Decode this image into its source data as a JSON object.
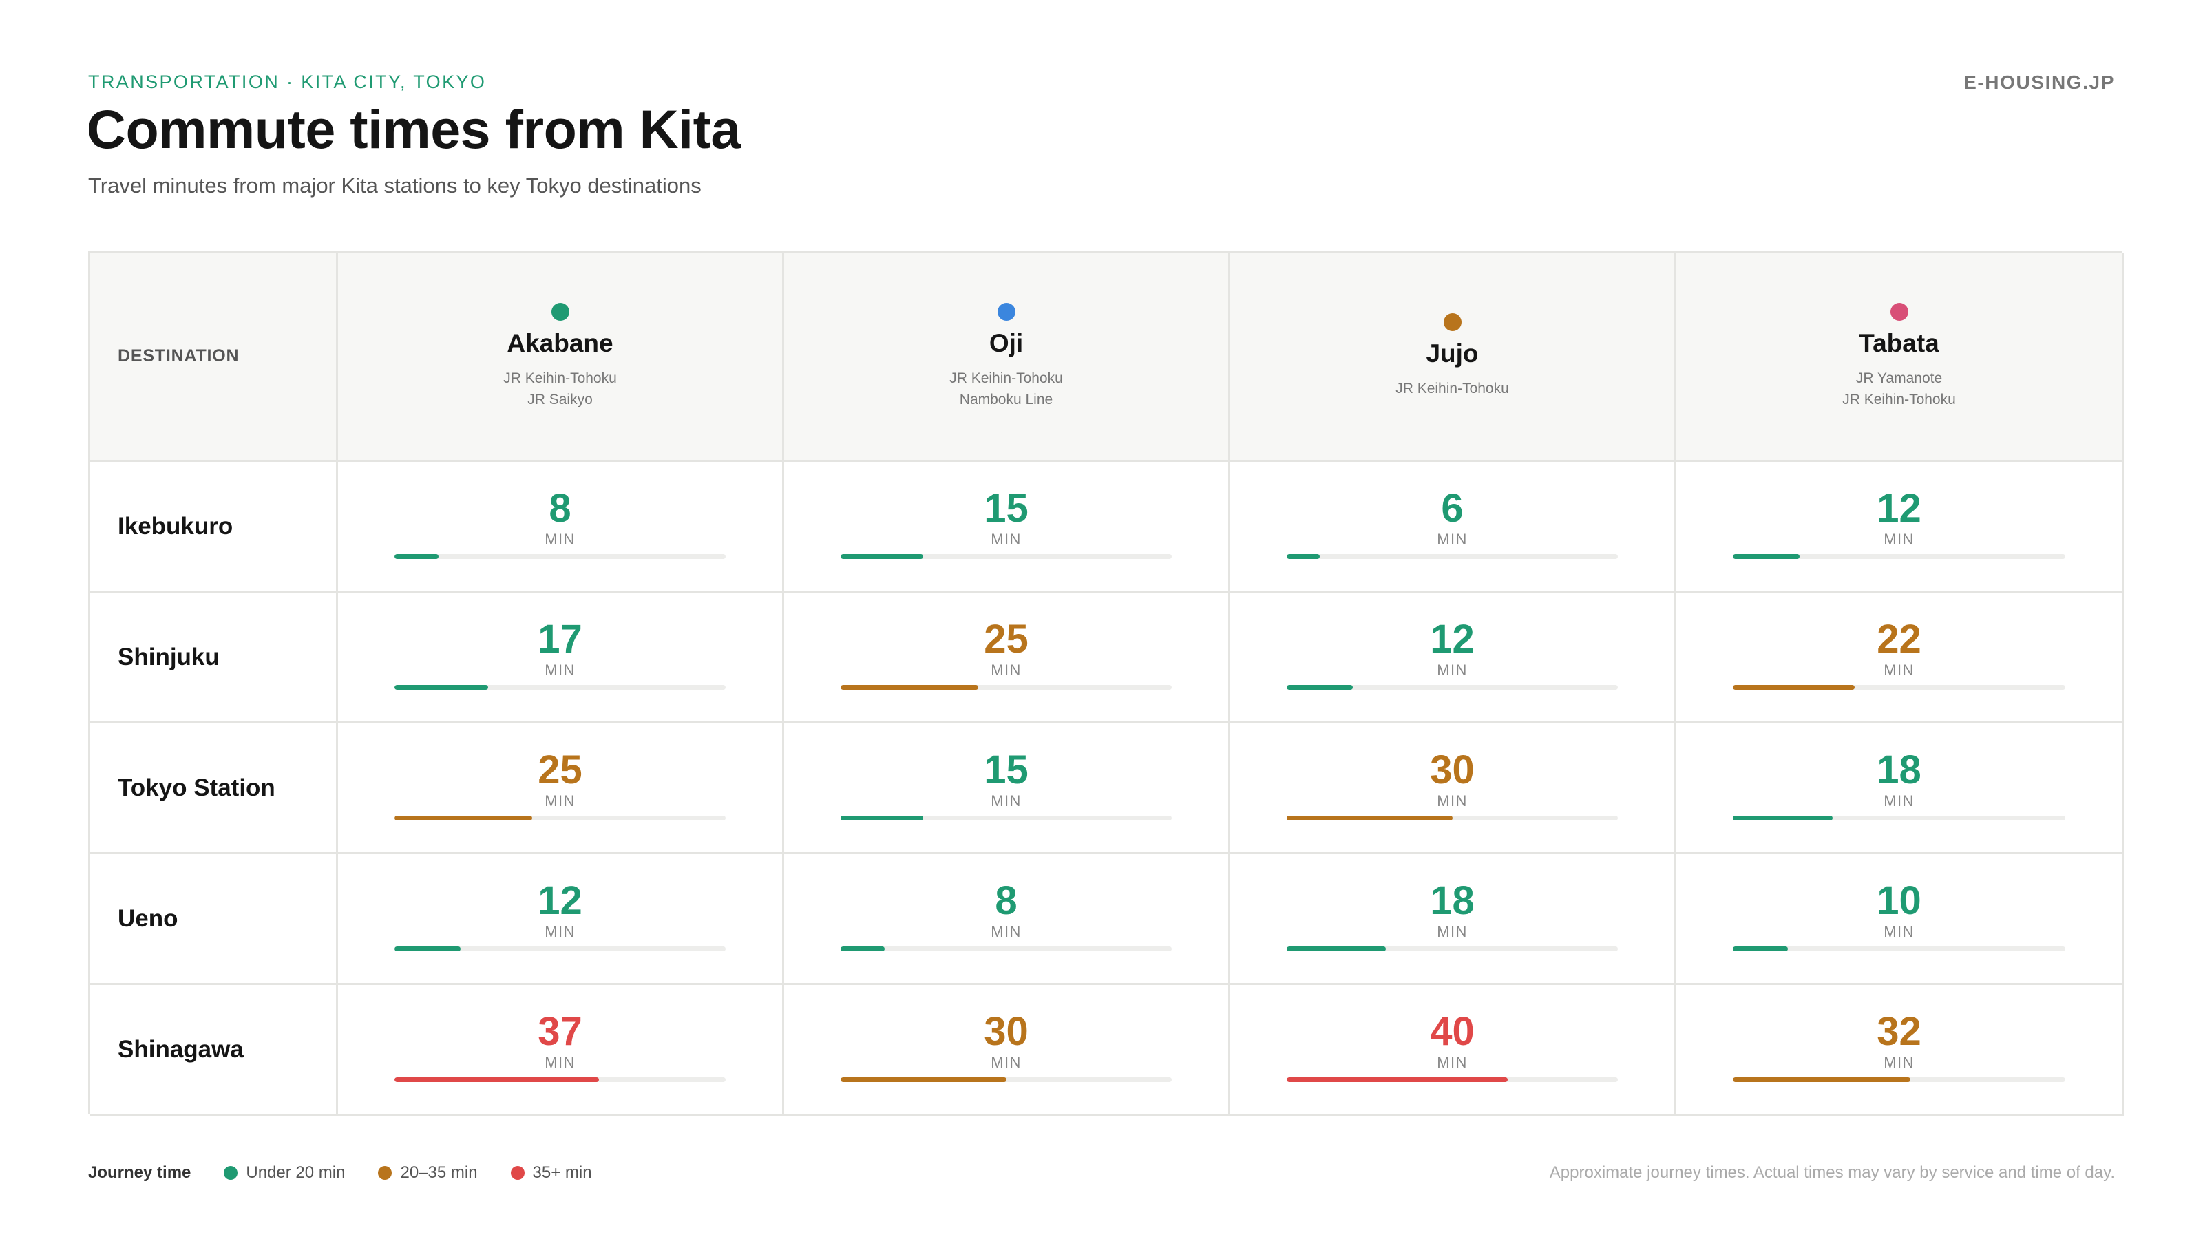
{
  "header": {
    "eyebrow": "TRANSPORTATION · KITA CITY, TOKYO",
    "brand": "E-HOUSING.JP",
    "title": "Commute times from Kita",
    "subtitle": "Travel minutes from major Kita stations to key Tokyo destinations"
  },
  "table": {
    "corner_label": "DESTINATION",
    "unit_label": "MIN"
  },
  "colors": {
    "under_20": "#1f9a72",
    "from_20_to_35": "#b8741c",
    "over_35": "#e04848"
  },
  "chart_data": {
    "type": "table",
    "scale_max_minutes": 60,
    "stations": [
      {
        "name": "Akabane",
        "lines": [
          "JR Keihin-Tohoku",
          "JR Saikyo"
        ],
        "color": "#1f9a72"
      },
      {
        "name": "Oji",
        "lines": [
          "JR Keihin-Tohoku",
          "Namboku Line"
        ],
        "color": "#3b86de"
      },
      {
        "name": "Jujo",
        "lines": [
          "JR Keihin-Tohoku"
        ],
        "color": "#b8741c"
      },
      {
        "name": "Tabata",
        "lines": [
          "JR Yamanote",
          "JR Keihin-Tohoku"
        ],
        "color": "#d84f77"
      }
    ],
    "destinations": [
      {
        "name": "Ikebukuro",
        "minutes": [
          8,
          15,
          6,
          12
        ]
      },
      {
        "name": "Shinjuku",
        "minutes": [
          17,
          25,
          12,
          22
        ]
      },
      {
        "name": "Tokyo Station",
        "minutes": [
          25,
          15,
          30,
          18
        ]
      },
      {
        "name": "Ueno",
        "minutes": [
          12,
          8,
          18,
          10
        ]
      },
      {
        "name": "Shinagawa",
        "minutes": [
          37,
          30,
          40,
          32
        ]
      }
    ]
  },
  "legend": {
    "title": "Journey time",
    "items": [
      {
        "label": "Under 20 min",
        "color": "#1f9a72"
      },
      {
        "label": "20–35 min",
        "color": "#b8741c"
      },
      {
        "label": "35+ min",
        "color": "#e04848"
      }
    ]
  },
  "footnote": "Approximate journey times. Actual times may vary by service and time of day."
}
